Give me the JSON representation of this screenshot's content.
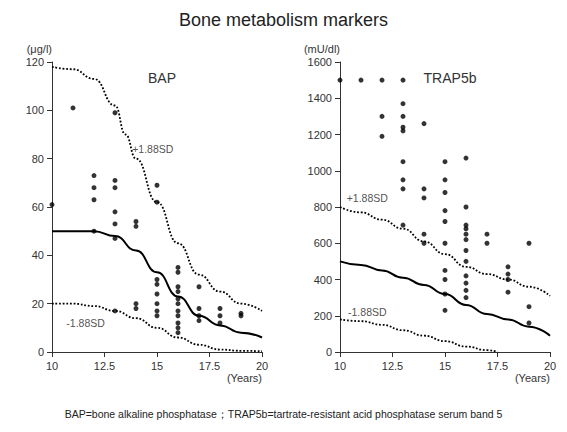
{
  "title": "Bone metabolism markers",
  "footnote": "BAP=bone alkaline phosphatase；TRAP5b=tartrate-resistant acid phosphatase serum band 5",
  "chart_data": [
    {
      "type": "scatter",
      "title": "BAP",
      "xlabel": "(Years)",
      "ylabel": "(μg/l)",
      "xlim": [
        10,
        20
      ],
      "xticks": [
        10,
        12.5,
        15,
        17.5,
        20
      ],
      "ylim": [
        0,
        120
      ],
      "yticks": [
        0,
        20,
        40,
        60,
        80,
        100,
        120
      ],
      "grid": false,
      "series": [
        {
          "type": "scatter",
          "color": "#000000",
          "marker": "circle",
          "x": [
            10,
            11,
            12,
            12,
            12,
            12,
            13,
            13,
            13,
            13,
            13,
            13,
            13,
            14,
            14,
            14,
            14,
            15,
            15,
            15,
            15,
            15,
            15,
            15,
            15,
            16,
            16,
            16,
            16,
            16,
            16,
            16,
            16,
            16,
            16,
            16,
            17,
            17,
            17,
            17,
            18,
            18,
            18,
            19,
            19
          ],
          "values": [
            61,
            101,
            73,
            68,
            63,
            50,
            99,
            71,
            68,
            58,
            53,
            47,
            17,
            54,
            52,
            20,
            18,
            69,
            62,
            30,
            28,
            24,
            20,
            17,
            15,
            35,
            33,
            27,
            25,
            22,
            20,
            17,
            15,
            12,
            10,
            8,
            27,
            18,
            15,
            13,
            18,
            15,
            12,
            16,
            15
          ]
        },
        {
          "type": "line",
          "color": "#000000",
          "line_style": "solid",
          "x": [
            10,
            12,
            13,
            14,
            15,
            16,
            17,
            18,
            19,
            20
          ],
          "values": [
            50,
            50,
            48,
            42,
            33,
            23,
            15,
            11,
            8,
            6
          ]
        },
        {
          "type": "line",
          "color": "#000000",
          "line_style": "dotted",
          "x": [
            10,
            11,
            12,
            13,
            13.5,
            14,
            15,
            16,
            17,
            18,
            19,
            20
          ],
          "values": [
            118,
            117,
            113,
            102,
            90,
            80,
            62,
            45,
            32,
            25,
            20,
            17
          ]
        },
        {
          "type": "line",
          "color": "#000000",
          "line_style": "dotted",
          "x": [
            10,
            11,
            12,
            13,
            14,
            15,
            16,
            17,
            18,
            19,
            20
          ],
          "values": [
            20,
            20,
            19,
            17,
            14,
            10,
            6,
            3,
            1,
            0.5,
            0.3
          ]
        }
      ],
      "annotations": [
        {
          "text": "+1.88SD",
          "x": 14.8,
          "y": 84
        },
        {
          "text": "-1.88SD",
          "x": 11.6,
          "y": 12
        }
      ]
    },
    {
      "type": "scatter",
      "title": "TRAP5b",
      "xlabel": "(Years)",
      "ylabel": "(mU/dl)",
      "xlim": [
        10,
        20
      ],
      "xticks": [
        10,
        12.5,
        15,
        17.5,
        20
      ],
      "ylim": [
        0,
        1600
      ],
      "yticks": [
        0,
        200,
        400,
        600,
        800,
        1000,
        1200,
        1400,
        1600
      ],
      "grid": false,
      "series": [
        {
          "type": "scatter",
          "color": "#000000",
          "marker": "circle",
          "x": [
            10,
            11,
            12,
            12,
            12,
            13,
            13,
            13,
            13,
            13,
            13,
            13,
            13,
            13,
            14,
            14,
            14,
            14,
            14,
            15,
            15,
            15,
            15,
            15,
            15,
            15,
            15,
            15,
            15,
            16,
            16,
            16,
            16,
            16,
            16,
            16,
            16,
            16,
            16,
            16,
            16,
            17,
            17,
            18,
            18,
            18,
            18,
            19,
            19,
            19
          ],
          "values": [
            1500,
            1500,
            1500,
            1300,
            1190,
            1500,
            1370,
            1300,
            1240,
            1220,
            1050,
            950,
            900,
            700,
            1260,
            900,
            850,
            650,
            600,
            1050,
            950,
            880,
            780,
            720,
            600,
            450,
            400,
            320,
            230,
            1070,
            800,
            700,
            680,
            650,
            620,
            560,
            500,
            420,
            380,
            340,
            300,
            650,
            600,
            470,
            430,
            400,
            330,
            600,
            250,
            160
          ]
        },
        {
          "type": "line",
          "color": "#000000",
          "line_style": "solid",
          "x": [
            10,
            11,
            12,
            13,
            14,
            15,
            16,
            17,
            18,
            19,
            20
          ],
          "values": [
            500,
            480,
            450,
            410,
            370,
            320,
            260,
            210,
            180,
            140,
            90
          ]
        },
        {
          "type": "line",
          "color": "#000000",
          "line_style": "dotted",
          "x": [
            10,
            11,
            12,
            13,
            14,
            15,
            16,
            17,
            18,
            19,
            20
          ],
          "values": [
            800,
            770,
            730,
            680,
            610,
            540,
            470,
            430,
            400,
            360,
            310
          ]
        },
        {
          "type": "line",
          "color": "#000000",
          "line_style": "dotted",
          "x": [
            10,
            11,
            12,
            13,
            14,
            15,
            16,
            17,
            17.5
          ],
          "values": [
            180,
            170,
            150,
            120,
            90,
            60,
            30,
            10,
            0
          ]
        }
      ],
      "annotations": [
        {
          "text": "+1.88SD",
          "x": 11.3,
          "y": 850
        },
        {
          "text": "-1.88SD",
          "x": 11.3,
          "y": 220
        }
      ]
    }
  ]
}
